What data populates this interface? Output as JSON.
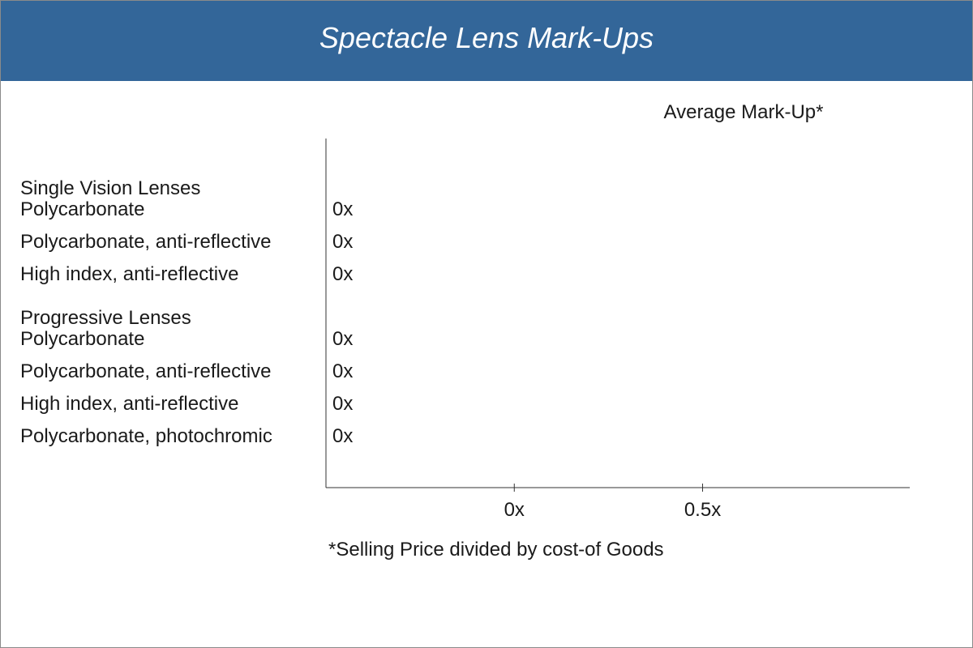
{
  "chart_data": {
    "type": "bar",
    "orientation": "horizontal",
    "title": "Spectacle Lens Mark-Ups",
    "series_title": "Average Mark-Up*",
    "footnote": "*Selling Price divided by cost-of Goods",
    "xlim": [
      -0.5,
      1.05
    ],
    "x_ticks": [
      {
        "value": 0,
        "label": "0x"
      },
      {
        "value": 0.5,
        "label": "0.5x"
      }
    ],
    "groups": [
      {
        "name": "Single Vision Lenses",
        "items": [
          {
            "category": "Polycarbonate",
            "value": 0,
            "label": "0x"
          },
          {
            "category": "Polycarbonate, anti-reflective",
            "value": 0,
            "label": "0x"
          },
          {
            "category": "High index, anti-reflective",
            "value": 0,
            "label": "0x"
          }
        ]
      },
      {
        "name": "Progressive Lenses",
        "items": [
          {
            "category": "Polycarbonate",
            "value": 0,
            "label": "0x"
          },
          {
            "category": "Polycarbonate, anti-reflective",
            "value": 0,
            "label": "0x"
          },
          {
            "category": "High index, anti-reflective",
            "value": 0,
            "label": "0x"
          },
          {
            "category": "Polycarbonate, photochromic",
            "value": 0,
            "label": "0x"
          }
        ]
      }
    ],
    "colors": {
      "header": "#336699",
      "bar": "#336699",
      "axis": "#333333"
    }
  }
}
